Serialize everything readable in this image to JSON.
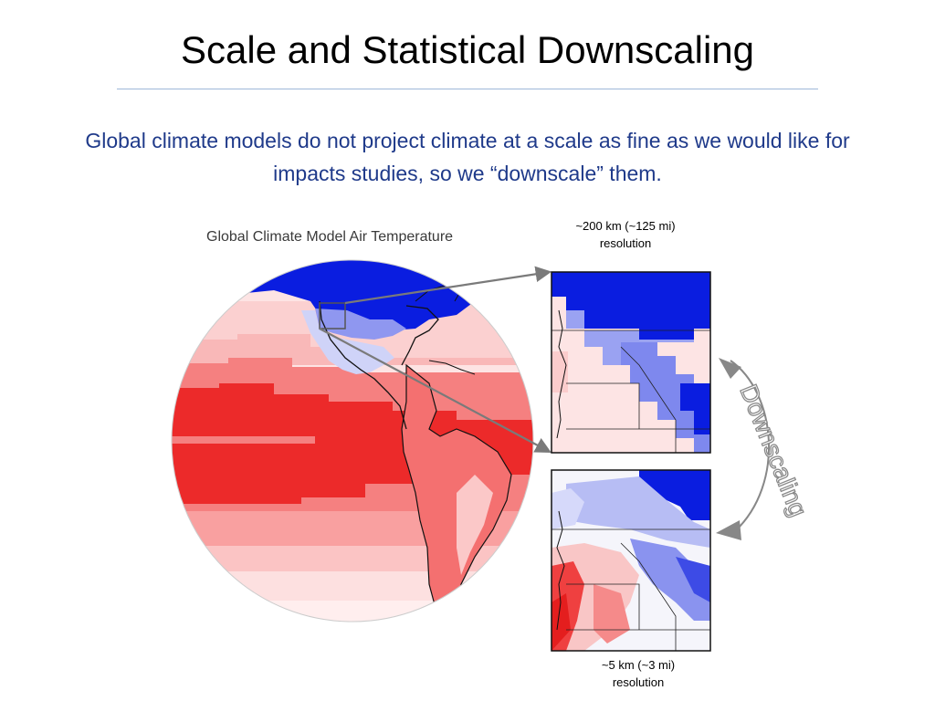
{
  "slide": {
    "title": "Scale and Statistical Downscaling",
    "subtitle": "Global climate models do not project climate at a scale as fine as we would like for impacts studies, so we “downscale” them."
  },
  "figure": {
    "title": "Global Climate Model Air Temperature",
    "coarse_caption_line1": "~200 km (~125 mi)",
    "coarse_caption_line2": "resolution",
    "fine_caption_line1": "~5 km (~3 mi)",
    "fine_caption_line2": "resolution",
    "downscaling_label": "Downscaling"
  },
  "colors": {
    "heading": "#000000",
    "subtitle": "#1f3a8a",
    "rule": "#9fb7d9",
    "cold": "#0a1de0",
    "cool": "#8f97f0",
    "mild": "#fbd9d9",
    "warm": "#f58080",
    "hot": "#ec2a2a"
  }
}
